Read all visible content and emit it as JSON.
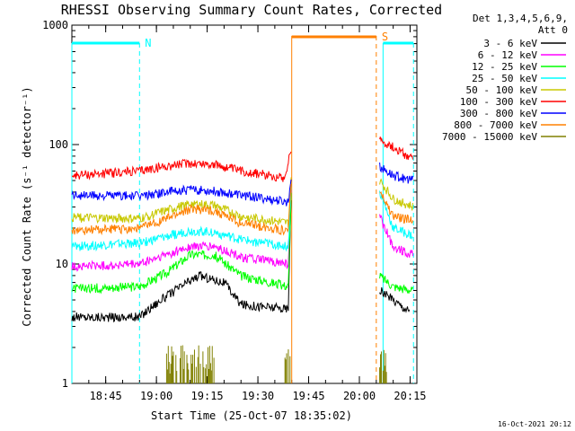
{
  "chart_data": {
    "type": "line",
    "title": "RHESSI Observing Summary Count Rates, Corrected",
    "xlabel": "Start Time (25-Oct-07 18:35:02)",
    "ylabel": "Corrected Count Rate (s⁻¹ detector⁻¹)",
    "y_scale": "log",
    "ylim": [
      1,
      1000
    ],
    "xlim_minutes": [
      0,
      102
    ],
    "x_tick_labels": [
      "18:45",
      "19:00",
      "19:15",
      "19:30",
      "19:45",
      "20:00",
      "20:15"
    ],
    "y_tick_labels": [
      "1",
      "10",
      "100",
      "1000"
    ],
    "legend_header": [
      "Det 1,3,4,5,6,9,",
      "Att 0"
    ],
    "footer_date": "16-Oct-2021 20:12",
    "flags": [
      {
        "label": "N",
        "color": "#00ffff",
        "start": 0,
        "end": 20
      },
      {
        "label": "S",
        "color": "#ff8000",
        "start": 65,
        "end": 90
      }
    ],
    "night_lines": [
      0,
      20,
      92,
      101
    ],
    "saa_lines": [
      65,
      90
    ],
    "series": [
      {
        "name": "3 - 6 keV",
        "color": "#000000",
        "profile": [
          [
            0,
            3.6
          ],
          [
            20,
            3.6
          ],
          [
            24,
            4.5
          ],
          [
            34,
            7
          ],
          [
            38,
            8
          ],
          [
            45,
            7
          ],
          [
            50,
            4.6
          ],
          [
            64,
            4.2
          ],
          [
            65,
            60
          ],
          [
            90,
            null
          ],
          [
            91,
            6
          ],
          [
            100,
            4
          ]
        ]
      },
      {
        "name": "6 - 12 keV",
        "color": "#ff00ff",
        "profile": [
          [
            0,
            9.5
          ],
          [
            20,
            10
          ],
          [
            28,
            12
          ],
          [
            35,
            14
          ],
          [
            42,
            14
          ],
          [
            50,
            11.5
          ],
          [
            64,
            10
          ],
          [
            65,
            60
          ],
          [
            90,
            null
          ],
          [
            91,
            25
          ],
          [
            95,
            14
          ],
          [
            101,
            12
          ]
        ]
      },
      {
        "name": "12 - 25 keV",
        "color": "#00ff00",
        "profile": [
          [
            0,
            6.2
          ],
          [
            20,
            6.5
          ],
          [
            28,
            8.5
          ],
          [
            35,
            12
          ],
          [
            42,
            12
          ],
          [
            50,
            8
          ],
          [
            64,
            6.5
          ],
          [
            65,
            60
          ],
          [
            90,
            null
          ],
          [
            91,
            8
          ],
          [
            95,
            6.5
          ],
          [
            101,
            6
          ]
        ]
      },
      {
        "name": "25 - 50 keV",
        "color": "#00ffff",
        "profile": [
          [
            0,
            14
          ],
          [
            20,
            15
          ],
          [
            28,
            17
          ],
          [
            35,
            19
          ],
          [
            42,
            18.5
          ],
          [
            50,
            16
          ],
          [
            64,
            14
          ],
          [
            65,
            60
          ],
          [
            90,
            null
          ],
          [
            91,
            40
          ],
          [
            95,
            20
          ],
          [
            101,
            17
          ]
        ]
      },
      {
        "name": "50 - 100 keV",
        "color": "#c8c800",
        "profile": [
          [
            0,
            24.5
          ],
          [
            20,
            24
          ],
          [
            28,
            28
          ],
          [
            35,
            32
          ],
          [
            42,
            31
          ],
          [
            50,
            25
          ],
          [
            64,
            22
          ],
          [
            65,
            60
          ],
          [
            90,
            null
          ],
          [
            91,
            50
          ],
          [
            95,
            35
          ],
          [
            101,
            30
          ]
        ]
      },
      {
        "name": "100 - 300 keV",
        "color": "#ff0000",
        "profile": [
          [
            0,
            55
          ],
          [
            20,
            60
          ],
          [
            28,
            66
          ],
          [
            35,
            70
          ],
          [
            42,
            68
          ],
          [
            50,
            60
          ],
          [
            63,
            53
          ],
          [
            65,
            100
          ],
          [
            90,
            null
          ],
          [
            91,
            110
          ],
          [
            95,
            95
          ],
          [
            101,
            75
          ]
        ]
      },
      {
        "name": "300 - 800 keV",
        "color": "#0000ff",
        "profile": [
          [
            0,
            38
          ],
          [
            20,
            37
          ],
          [
            28,
            40
          ],
          [
            35,
            42
          ],
          [
            42,
            41
          ],
          [
            50,
            38
          ],
          [
            64,
            33
          ],
          [
            65,
            60
          ],
          [
            90,
            null
          ],
          [
            91,
            65
          ],
          [
            95,
            55
          ],
          [
            101,
            50
          ]
        ]
      },
      {
        "name": "800 - 7000 keV",
        "color": "#ff8000",
        "profile": [
          [
            0,
            19
          ],
          [
            20,
            20
          ],
          [
            28,
            24
          ],
          [
            35,
            29
          ],
          [
            42,
            28
          ],
          [
            50,
            22
          ],
          [
            64,
            19
          ],
          [
            65,
            60
          ],
          [
            90,
            null
          ],
          [
            91,
            40
          ],
          [
            95,
            25
          ],
          [
            101,
            23
          ]
        ]
      },
      {
        "name": "7000 - 15000 keV",
        "color": "#808000",
        "profile": [
          [
            28,
            1.7
          ],
          [
            42,
            1.7
          ],
          [
            64,
            2
          ],
          [
            91,
            1.7
          ],
          [
            93,
            1.7
          ]
        ]
      }
    ]
  }
}
